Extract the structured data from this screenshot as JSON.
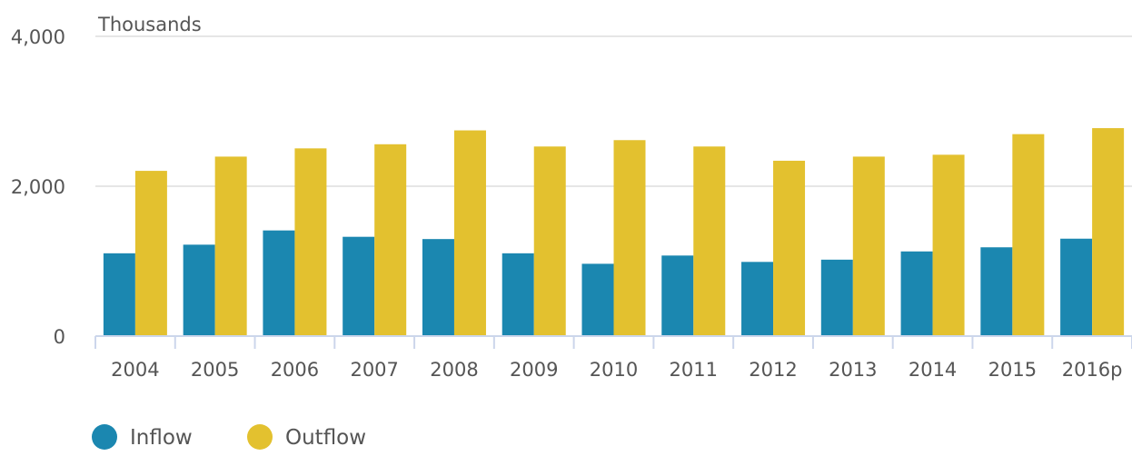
{
  "chart_data": {
    "type": "bar",
    "unit_label": "Thousands",
    "categories": [
      "2004",
      "2005",
      "2006",
      "2007",
      "2008",
      "2009",
      "2010",
      "2011",
      "2012",
      "2013",
      "2014",
      "2015",
      "2016p"
    ],
    "series": [
      {
        "name": "Inflow",
        "color": "#1b87b0",
        "values": [
          1105,
          1220,
          1410,
          1325,
          1295,
          1105,
          965,
          1075,
          990,
          1020,
          1130,
          1185,
          1300
        ]
      },
      {
        "name": "Outflow",
        "color": "#e3c12f",
        "values": [
          2205,
          2395,
          2505,
          2560,
          2745,
          2530,
          2615,
          2530,
          2340,
          2395,
          2420,
          2695,
          2775
        ]
      }
    ],
    "ylim": [
      0,
      4000
    ],
    "y_ticks": [
      0,
      2000,
      4000
    ],
    "y_tick_labels": [
      "0",
      "2,000",
      "4,000"
    ],
    "grid": true,
    "legend_position": "bottom-left"
  }
}
